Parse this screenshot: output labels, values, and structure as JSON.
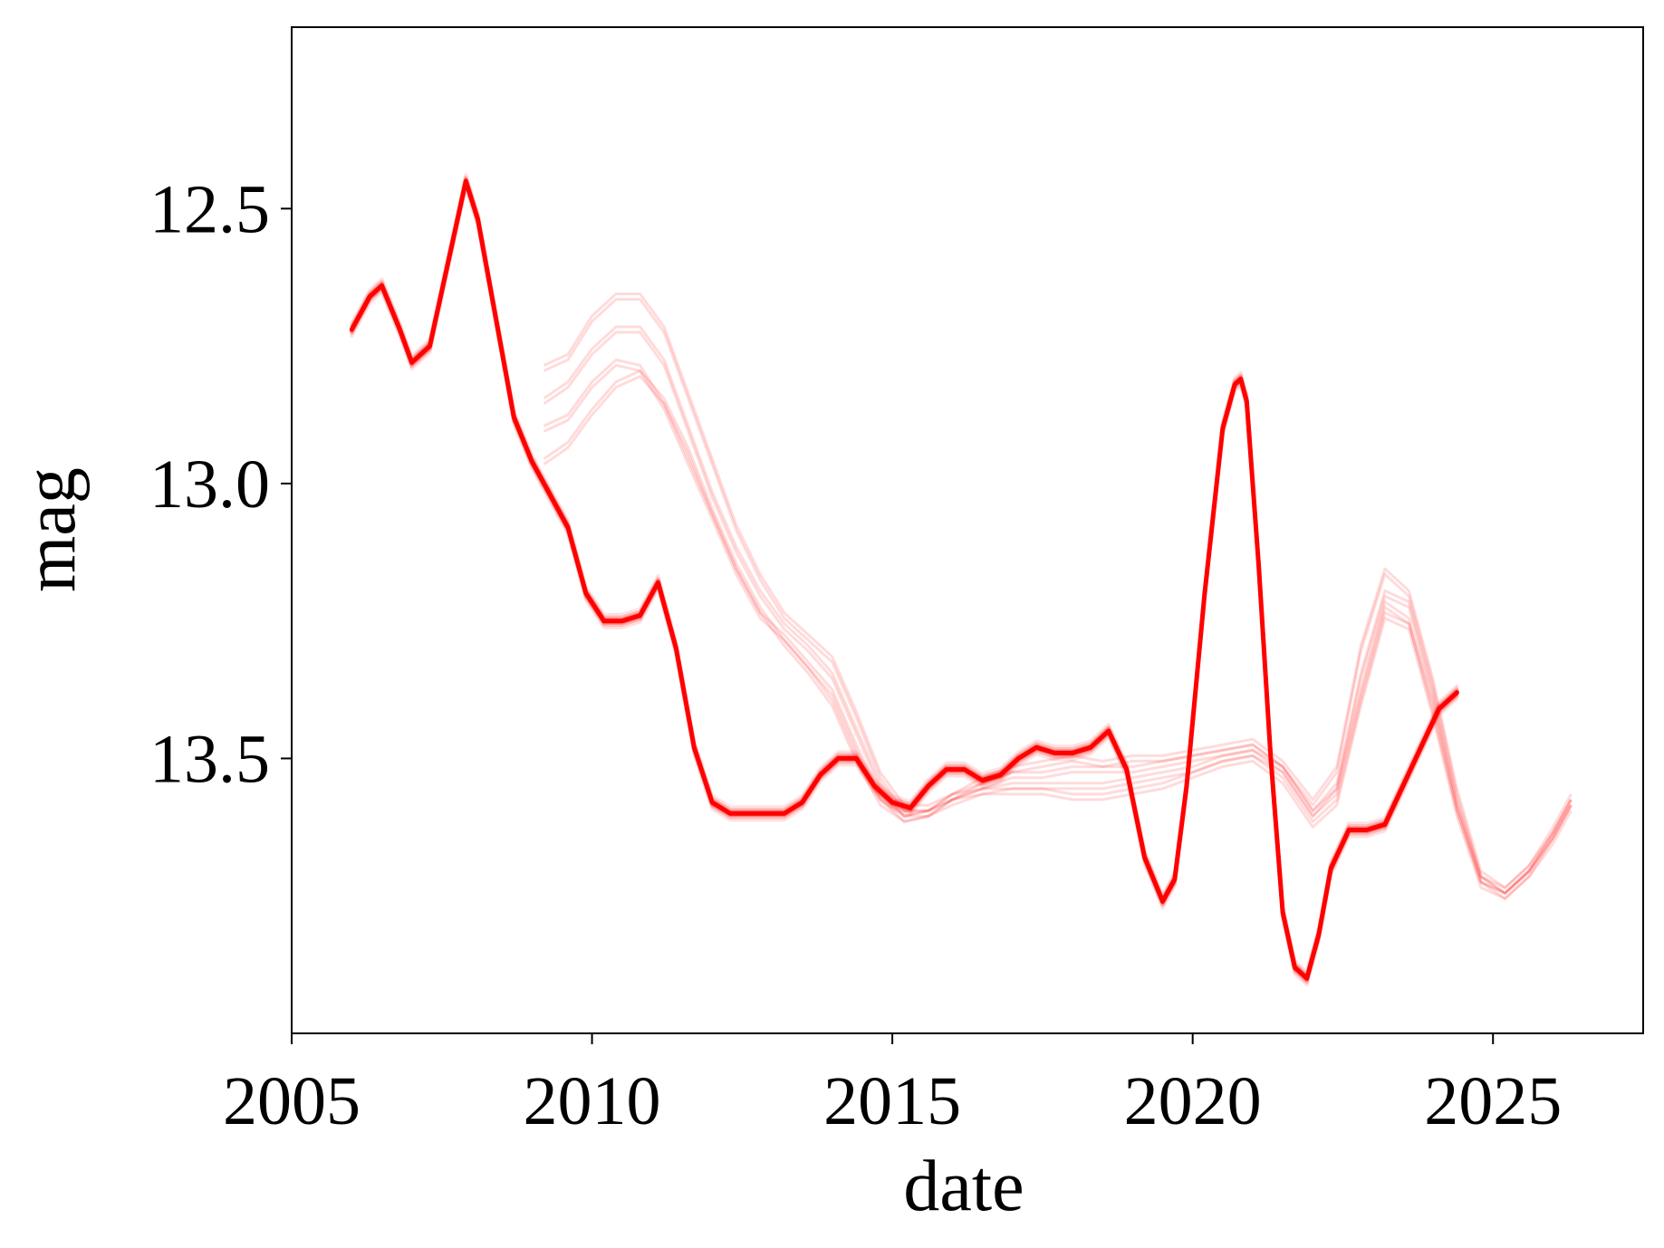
{
  "chart_data": {
    "type": "line",
    "xlabel": "date",
    "ylabel": "mag",
    "x_ticks": [
      "2005",
      "2010",
      "2015",
      "2020",
      "2025"
    ],
    "y_ticks": [
      "12.5",
      "13.0",
      "13.5"
    ],
    "xlim": [
      2005.0,
      2027.5
    ],
    "ylim": [
      14.0,
      12.17
    ],
    "y_inverted": true,
    "grid": false,
    "legend": "none",
    "line_color": "#ff0000",
    "series": [
      {
        "style": "main",
        "x": [
          2006.0,
          2006.3,
          2006.5,
          2006.8,
          2007.0,
          2007.3,
          2007.6,
          2007.9,
          2008.1,
          2008.4,
          2008.7,
          2009.0,
          2009.3,
          2009.6,
          2009.9,
          2010.2,
          2010.5,
          2010.8,
          2011.1,
          2011.4,
          2011.7,
          2012.0,
          2012.3,
          2012.6,
          2012.9,
          2013.2,
          2013.5,
          2013.8,
          2014.1,
          2014.4,
          2014.7,
          2015.0,
          2015.3,
          2015.6,
          2015.9,
          2016.2,
          2016.5,
          2016.8,
          2017.1,
          2017.4,
          2017.7,
          2018.0,
          2018.3,
          2018.6,
          2018.9,
          2019.2,
          2019.5,
          2019.7,
          2019.9,
          2020.2,
          2020.5,
          2020.7,
          2020.8,
          2020.9,
          2021.1,
          2021.3,
          2021.5,
          2021.7,
          2021.9,
          2022.1,
          2022.3,
          2022.6,
          2022.9,
          2023.2,
          2023.5,
          2023.8,
          2024.1,
          2024.4
        ],
        "y": [
          12.72,
          12.66,
          12.64,
          12.72,
          12.78,
          12.75,
          12.6,
          12.45,
          12.52,
          12.7,
          12.88,
          12.96,
          13.02,
          13.08,
          13.2,
          13.25,
          13.25,
          13.24,
          13.18,
          13.3,
          13.48,
          13.58,
          13.6,
          13.6,
          13.6,
          13.6,
          13.58,
          13.53,
          13.5,
          13.5,
          13.55,
          13.58,
          13.59,
          13.55,
          13.52,
          13.52,
          13.54,
          13.53,
          13.5,
          13.48,
          13.49,
          13.49,
          13.48,
          13.45,
          13.52,
          13.68,
          13.76,
          13.72,
          13.55,
          13.2,
          12.9,
          12.82,
          12.81,
          12.85,
          13.15,
          13.5,
          13.78,
          13.88,
          13.9,
          13.82,
          13.7,
          13.63,
          13.63,
          13.62,
          13.55,
          13.48,
          13.41,
          13.38
        ]
      },
      {
        "style": "faint",
        "x": [
          2009.2,
          2009.6,
          2010.0,
          2010.4,
          2010.8,
          2011.2,
          2011.6,
          2012.0,
          2012.4,
          2012.8,
          2013.2,
          2013.6,
          2014.0,
          2014.4,
          2014.8,
          2015.2,
          2015.6,
          2016.0,
          2016.5,
          2017.0,
          2017.5,
          2018.0,
          2018.5,
          2019.0,
          2019.5,
          2020.0,
          2020.5,
          2021.0,
          2021.5,
          2022.0,
          2022.4,
          2022.8,
          2023.2,
          2023.6,
          2024.0,
          2024.4,
          2024.8,
          2025.2,
          2025.6,
          2026.0,
          2026.3
        ],
        "y": [
          12.85,
          12.82,
          12.76,
          12.72,
          12.72,
          12.78,
          12.9,
          13.02,
          13.12,
          13.2,
          13.26,
          13.3,
          13.35,
          13.45,
          13.55,
          13.6,
          13.6,
          13.58,
          13.56,
          13.55,
          13.55,
          13.55,
          13.55,
          13.54,
          13.53,
          13.52,
          13.5,
          13.49,
          13.52,
          13.6,
          13.55,
          13.35,
          13.2,
          13.22,
          13.38,
          13.58,
          13.72,
          13.74,
          13.7,
          13.64,
          13.58
        ]
      },
      {
        "style": "faint",
        "x": [
          2009.2,
          2009.6,
          2010.0,
          2010.4,
          2010.8,
          2011.2,
          2011.6,
          2012.0,
          2012.4,
          2012.8,
          2013.2,
          2013.6,
          2014.0,
          2014.4,
          2014.8,
          2015.2,
          2015.6,
          2016.0,
          2016.5,
          2017.0,
          2017.5,
          2018.0,
          2018.5,
          2019.0,
          2019.5,
          2020.0,
          2020.5,
          2021.0,
          2021.5,
          2022.0,
          2022.4,
          2022.8,
          2023.2,
          2023.6,
          2024.0,
          2024.4,
          2024.8,
          2025.2,
          2025.6,
          2026.0,
          2026.3
        ],
        "y": [
          12.79,
          12.77,
          12.7,
          12.66,
          12.66,
          12.72,
          12.84,
          12.96,
          13.08,
          13.17,
          13.24,
          13.28,
          13.32,
          13.42,
          13.53,
          13.59,
          13.59,
          13.57,
          13.56,
          13.56,
          13.56,
          13.57,
          13.57,
          13.56,
          13.55,
          13.53,
          13.51,
          13.5,
          13.54,
          13.62,
          13.58,
          13.4,
          13.24,
          13.26,
          13.42,
          13.6,
          13.73,
          13.75,
          13.71,
          13.65,
          13.59
        ]
      },
      {
        "style": "faint",
        "x": [
          2009.2,
          2009.6,
          2010.0,
          2010.4,
          2010.8,
          2011.2,
          2011.6,
          2012.0,
          2012.4,
          2012.8,
          2013.2,
          2013.6,
          2014.0,
          2014.4,
          2014.8,
          2015.2,
          2015.6,
          2016.0,
          2016.5,
          2017.0,
          2017.5,
          2018.0,
          2018.5,
          2019.0,
          2019.5,
          2020.0,
          2020.5,
          2021.0,
          2021.5,
          2022.0,
          2022.4,
          2022.8,
          2023.2,
          2023.6,
          2024.0,
          2024.4,
          2024.8,
          2025.2,
          2025.6,
          2026.0,
          2026.3
        ],
        "y": [
          12.9,
          12.88,
          12.82,
          12.78,
          12.79,
          12.86,
          12.96,
          13.06,
          13.16,
          13.24,
          13.28,
          13.33,
          13.38,
          13.48,
          13.57,
          13.61,
          13.6,
          13.57,
          13.54,
          13.52,
          13.51,
          13.5,
          13.51,
          13.5,
          13.5,
          13.49,
          13.48,
          13.47,
          13.51,
          13.58,
          13.52,
          13.3,
          13.16,
          13.2,
          13.36,
          13.56,
          13.71,
          13.74,
          13.7,
          13.63,
          13.57
        ]
      },
      {
        "style": "faint",
        "x": [
          2009.2,
          2009.6,
          2010.0,
          2010.4,
          2010.8,
          2011.2,
          2011.6,
          2012.0,
          2012.4,
          2012.8,
          2013.2,
          2013.6,
          2014.0,
          2014.4,
          2014.8,
          2015.2,
          2015.6,
          2016.0,
          2016.5,
          2017.0,
          2017.5,
          2018.0,
          2018.5,
          2019.0,
          2019.5,
          2020.0,
          2020.5,
          2021.0,
          2021.5,
          2022.0,
          2022.4,
          2022.8,
          2023.2,
          2023.6,
          2024.0,
          2024.4,
          2024.8,
          2025.2,
          2025.6,
          2026.0,
          2026.3
        ],
        "y": [
          12.96,
          12.93,
          12.87,
          12.82,
          12.8,
          12.85,
          12.94,
          13.05,
          13.15,
          13.23,
          13.29,
          13.34,
          13.4,
          13.5,
          13.58,
          13.61,
          13.6,
          13.57,
          13.55,
          13.53,
          13.53,
          13.52,
          13.52,
          13.52,
          13.51,
          13.5,
          13.49,
          13.48,
          13.52,
          13.6,
          13.56,
          13.38,
          13.22,
          13.25,
          13.4,
          13.59,
          13.72,
          13.75,
          13.71,
          13.64,
          13.58
        ]
      }
    ]
  }
}
